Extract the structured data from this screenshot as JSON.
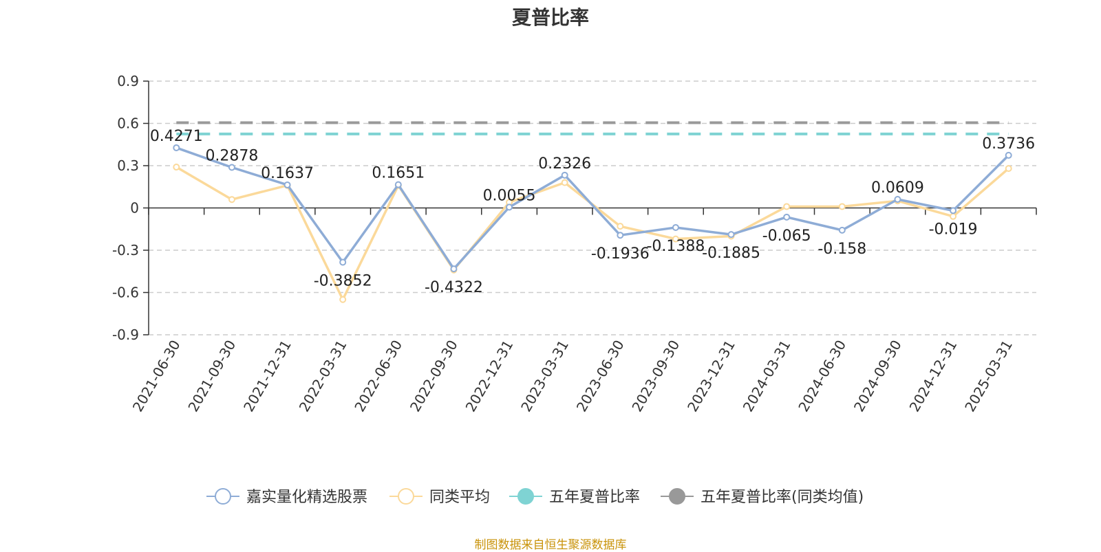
{
  "chart_data": {
    "type": "line",
    "title": "夏普比率",
    "categories": [
      "2021-06-30",
      "2021-09-30",
      "2021-12-31",
      "2022-03-31",
      "2022-06-30",
      "2022-09-30",
      "2022-12-31",
      "2023-03-31",
      "2023-06-30",
      "2023-09-30",
      "2023-12-31",
      "2024-03-31",
      "2024-06-30",
      "2024-09-30",
      "2024-12-31",
      "2025-03-31"
    ],
    "ylim": [
      -0.9,
      0.9
    ],
    "yticks": [
      0.9,
      0.6,
      0.3,
      0,
      -0.3,
      -0.6,
      -0.9
    ],
    "ytick_labels": [
      "0.9",
      "0.6",
      "0.3",
      "0",
      "-0.3",
      "-0.6",
      "-0.9"
    ],
    "grid": true,
    "legend_position": "bottom",
    "series": [
      {
        "name": "嘉实量化精选股票",
        "color": "#8eacd6",
        "values": [
          0.4271,
          0.2878,
          0.1637,
          -0.3852,
          0.1651,
          -0.4322,
          0.0055,
          0.2326,
          -0.1936,
          -0.1388,
          -0.1885,
          -0.065,
          -0.158,
          0.0609,
          -0.019,
          0.3736
        ],
        "labels": [
          "0.4271",
          "0.2878",
          "0.1637",
          "-0.3852",
          "0.1651",
          "-0.4322",
          "0.0055",
          "0.2326",
          "-0.1936",
          "-0.1388",
          "-0.1885",
          "-0.065",
          "-0.158",
          "0.0609",
          "-0.019",
          "0.3736"
        ]
      },
      {
        "name": "同类平均",
        "color": "#fbd99a",
        "values": [
          0.29,
          0.06,
          0.16,
          -0.65,
          0.16,
          -0.44,
          0.04,
          0.18,
          -0.13,
          -0.22,
          -0.2,
          0.01,
          0.01,
          0.05,
          -0.06,
          0.28
        ]
      },
      {
        "name": "五年夏普比率",
        "color": "#7fd3d3",
        "style": "dashed",
        "constant": 0.525
      },
      {
        "name": "五年夏普比率(同类均值)",
        "color": "#999999",
        "style": "dashed",
        "constant": 0.605
      }
    ]
  },
  "footer": {
    "source": "制图数据来自恒生聚源数据库"
  }
}
